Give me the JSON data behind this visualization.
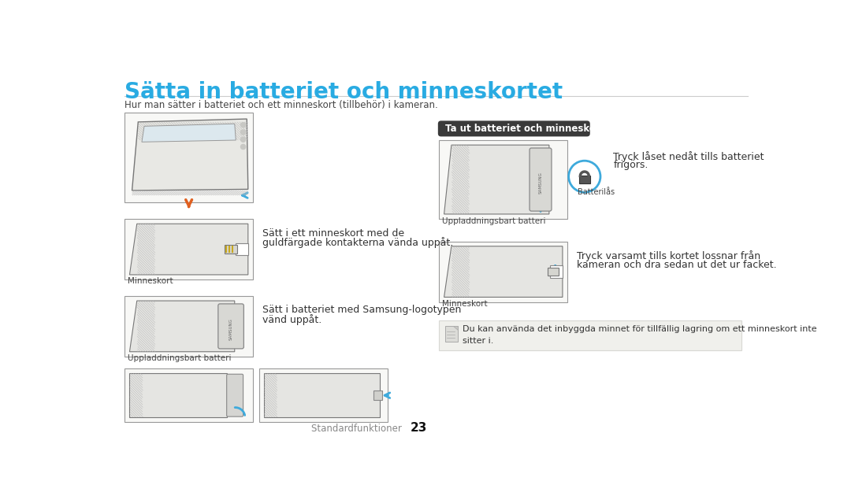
{
  "bg_color": "#ffffff",
  "title": "Sätta in batteriet och minneskortet",
  "title_color": "#29abe2",
  "title_fontsize": 20,
  "subtitle": "Hur man sätter i batteriet och ett minneskort (tillbehör) i kameran.",
  "subtitle_fontsize": 8.5,
  "subtitle_color": "#444444",
  "section2_header": "Ta ut batteriet och minneskortet",
  "section2_header_bg": "#3a3a3a",
  "section2_header_color": "#ffffff",
  "text1_line1": "Sätt i ett minneskort med de",
  "text1_line2": "guldfärgade kontakterna vända uppåt.",
  "text2_line1": "Sätt i batteriet med Samsung-logotypen",
  "text2_line2": "vänd uppåt.",
  "text3_line1": "Tryck låset nedåt tills batteriet",
  "text3_line2": "frigörs.",
  "text4_line1": "Tryck varsamt tills kortet lossnar från",
  "text4_line2": "kameran och dra sedan ut det ur facket.",
  "label_minneskort": "Minneskort",
  "label_batteri": "Uppladdningsbart batteri",
  "label_batteri2": "Uppladdningsbart batteri",
  "label_minneskort2": "Minneskort",
  "label_batterilås": "Batterilås",
  "note_text": "Du kan använda det inbyggda minnet för tillfällig lagring om ett minneskort inte\nsitter i.",
  "footer_text": "Standardfunktioner",
  "footer_number": "23",
  "body_fontsize": 9,
  "label_fontsize": 7.5,
  "note_fontsize": 8,
  "img_border_color": "#999999",
  "img_bg": "#f2f2f2",
  "sketch_color": "#888888",
  "sketch_dark": "#555555",
  "blue_arrow": "#3eaadc",
  "orange_arrow": "#e06020"
}
